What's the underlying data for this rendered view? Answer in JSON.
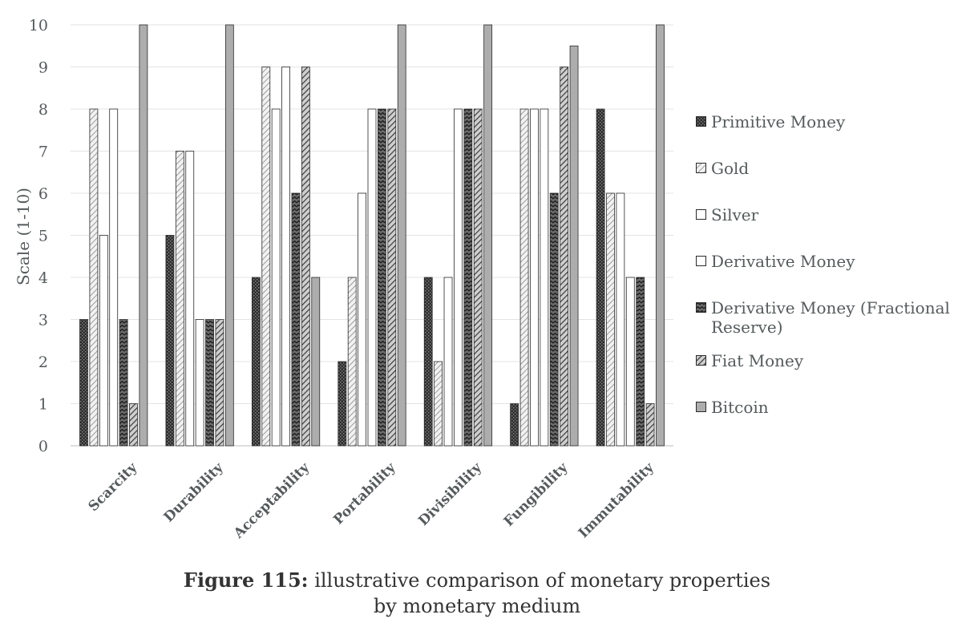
{
  "chart_data": {
    "type": "bar",
    "ylabel": "Scale (1-10)",
    "ylim": [
      0,
      10
    ],
    "yticks": [
      "0",
      "1",
      "2",
      "3",
      "4",
      "5",
      "6",
      "7",
      "8",
      "9",
      "10"
    ],
    "grid": true,
    "legend_position": "right",
    "categories": [
      "Scarcity",
      "Durability",
      "Acceptability",
      "Portability",
      "Divisibility",
      "Fungibility",
      "Immutability"
    ],
    "series": [
      {
        "name": "Primitive Money",
        "pattern": "dense-check",
        "values": [
          3,
          5,
          4,
          2,
          4,
          1,
          8
        ]
      },
      {
        "name": "Gold",
        "pattern": "light-diagonal",
        "values": [
          8,
          7,
          9,
          4,
          2,
          8,
          6
        ]
      },
      {
        "name": "Silver",
        "pattern": "plain",
        "values": [
          5,
          7,
          8,
          6,
          4,
          8,
          6
        ]
      },
      {
        "name": "Derivative Money",
        "pattern": "plain",
        "values": [
          8,
          3,
          9,
          8,
          8,
          8,
          4
        ]
      },
      {
        "name": "Derivative Money (Fractional Reserve)",
        "pattern": "zigzag",
        "values": [
          3,
          3,
          6,
          8,
          8,
          6,
          4
        ]
      },
      {
        "name": "Fiat Money",
        "pattern": "dark-diagonal",
        "values": [
          1,
          3,
          9,
          8,
          8,
          9,
          1
        ]
      },
      {
        "name": "Bitcoin",
        "pattern": "solid-gray",
        "values": [
          10,
          10,
          4,
          10,
          10,
          9.5,
          10
        ]
      }
    ]
  },
  "legend": {
    "items": [
      "Primitive Money",
      "Gold",
      "Silver",
      "Derivative Money",
      "Derivative Money (Fractional Reserve)",
      "Fiat Money",
      "Bitcoin"
    ]
  },
  "caption": {
    "label": "Figure 115:",
    "text": "illustrative comparison of monetary properties",
    "line2": "by monetary medium"
  }
}
